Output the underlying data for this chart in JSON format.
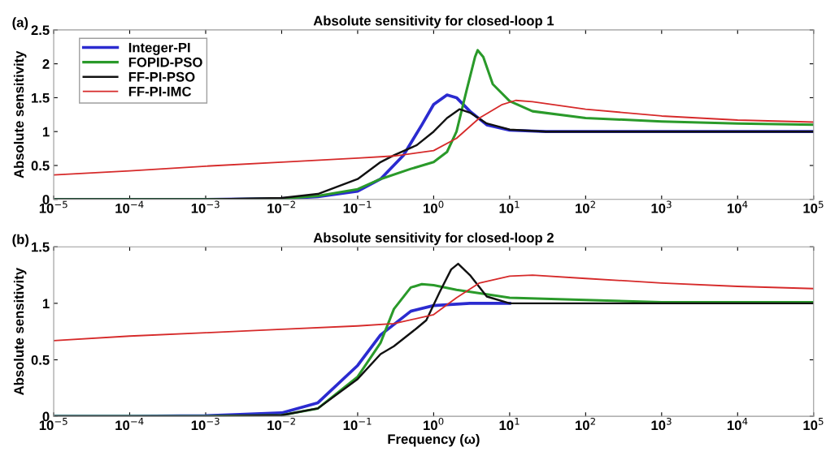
{
  "chart_data": [
    {
      "type": "line",
      "title": "Absolute sensitivity for closed-loop 1",
      "ylabel": "Absolute sensitivity",
      "annotations": [
        "(a)"
      ],
      "log": "x",
      "legend": "top left",
      "grid": false,
      "xlim": [
        1e-05,
        100000
      ],
      "ylim": [
        0,
        2.5
      ],
      "xticks": [
        {
          "value": 1e-05,
          "label": "10$^{−5}$"
        },
        {
          "value": 0.0001,
          "label": "10$^{−4}$"
        },
        {
          "value": 0.001,
          "label": "10$^{−3}$"
        },
        {
          "value": 0.01,
          "label": "10$^{−2}$"
        },
        {
          "value": 0.1,
          "label": "10$^{−1}$"
        },
        {
          "value": 1,
          "label": "10$^{0}$"
        },
        {
          "value": 10,
          "label": "10$^{1}$"
        },
        {
          "value": 100,
          "label": "10$^{2}$"
        },
        {
          "value": 1000,
          "label": "10$^{3}$"
        },
        {
          "value": 10000,
          "label": "10$^{4}$"
        },
        {
          "value": 100000,
          "label": "10$^{5}$"
        }
      ],
      "yticks": [
        0,
        0.5,
        1,
        1.5,
        2,
        2.5
      ],
      "series": [
        {
          "name": "Integer-PI",
          "color": "#2b2bd0",
          "x": [
            1e-05,
            0.001,
            0.01,
            0.03,
            0.1,
            0.2,
            0.4,
            0.7,
            1.0,
            1.5,
            2,
            3,
            5,
            10,
            30,
            100000
          ],
          "values": [
            0,
            0,
            0.01,
            0.04,
            0.12,
            0.3,
            0.65,
            1.1,
            1.4,
            1.54,
            1.5,
            1.3,
            1.1,
            1.02,
            1.0,
            1.0
          ]
        },
        {
          "name": "FOPID-PSO",
          "color": "#2a9a2a",
          "x": [
            1e-05,
            0.001,
            0.01,
            0.03,
            0.1,
            0.2,
            0.5,
            1,
            1.5,
            2,
            2.7,
            3.5,
            3.8,
            4.5,
            6,
            10,
            20,
            100,
            1000,
            10000,
            100000
          ],
          "values": [
            0,
            0,
            0.01,
            0.05,
            0.15,
            0.3,
            0.45,
            0.55,
            0.7,
            1.0,
            1.6,
            2.1,
            2.2,
            2.1,
            1.7,
            1.45,
            1.3,
            1.2,
            1.15,
            1.12,
            1.1
          ]
        },
        {
          "name": "FF-PI-PSO",
          "color": "#111111",
          "x": [
            1e-05,
            0.001,
            0.003,
            0.01,
            0.03,
            0.1,
            0.2,
            0.3,
            0.6,
            1,
            1.5,
            2.2,
            3,
            5,
            10,
            30,
            100000
          ],
          "values": [
            0,
            0,
            0.01,
            0.02,
            0.08,
            0.3,
            0.55,
            0.65,
            0.8,
            1.0,
            1.2,
            1.33,
            1.28,
            1.12,
            1.03,
            1.0,
            1.0
          ]
        },
        {
          "name": "FF-PI-IMC",
          "color": "#d62a2a",
          "x": [
            1e-05,
            0.0001,
            0.001,
            0.01,
            0.1,
            0.3,
            1,
            2,
            4,
            8,
            12,
            20,
            100,
            1000,
            10000,
            100000
          ],
          "values": [
            0.36,
            0.42,
            0.49,
            0.55,
            0.61,
            0.64,
            0.72,
            0.9,
            1.2,
            1.4,
            1.46,
            1.44,
            1.33,
            1.23,
            1.17,
            1.14
          ]
        }
      ]
    },
    {
      "type": "line",
      "title": "Absolute sensitivity for closed-loop 2",
      "xlabel": "Frequency (ω)",
      "ylabel": "Absolute sensitivity",
      "annotations": [
        "(b)"
      ],
      "log": "x",
      "grid": false,
      "xlim": [
        1e-05,
        100000
      ],
      "ylim": [
        0,
        1.5
      ],
      "xticks": [
        {
          "value": 1e-05,
          "label": "10$^{−5}$"
        },
        {
          "value": 0.0001,
          "label": "10$^{−4}$"
        },
        {
          "value": 0.001,
          "label": "10$^{−3}$"
        },
        {
          "value": 0.01,
          "label": "10$^{−2}$"
        },
        {
          "value": 0.1,
          "label": "10$^{−1}$"
        },
        {
          "value": 1,
          "label": "10$^{0}$"
        },
        {
          "value": 10,
          "label": "10$^{1}$"
        },
        {
          "value": 100,
          "label": "10$^{2}$"
        },
        {
          "value": 1000,
          "label": "10$^{3}$"
        },
        {
          "value": 10000,
          "label": "10$^{4}$"
        },
        {
          "value": 100000,
          "label": "10$^{5}$"
        }
      ],
      "yticks": [
        0,
        0.5,
        1,
        1.5
      ],
      "series": [
        {
          "color": "#2b2bd0",
          "x": [
            1e-05,
            0.0001,
            0.001,
            0.01,
            0.03,
            0.1,
            0.2,
            0.5,
            1,
            3,
            10
          ],
          "values": [
            0,
            0,
            0.005,
            0.03,
            0.12,
            0.45,
            0.72,
            0.93,
            0.98,
            1.0,
            1.0
          ]
        },
        {
          "color": "#2a9a2a",
          "x": [
            1e-05,
            0.001,
            0.01,
            0.03,
            0.1,
            0.2,
            0.3,
            0.5,
            0.7,
            1,
            2,
            5,
            10,
            100,
            1000,
            100000
          ],
          "values": [
            0,
            0,
            0.01,
            0.07,
            0.35,
            0.65,
            0.95,
            1.14,
            1.17,
            1.16,
            1.12,
            1.08,
            1.05,
            1.03,
            1.01,
            1.01
          ]
        },
        {
          "color": "#111111",
          "x": [
            1e-05,
            0.001,
            0.01,
            0.03,
            0.1,
            0.2,
            0.3,
            0.6,
            0.8,
            1.2,
            1.7,
            2.1,
            3,
            5,
            10,
            100000
          ],
          "values": [
            0,
            0,
            0.01,
            0.07,
            0.33,
            0.55,
            0.62,
            0.78,
            0.85,
            1.1,
            1.3,
            1.35,
            1.25,
            1.06,
            1.0,
            1.0
          ]
        },
        {
          "color": "#d62a2a",
          "x": [
            1e-05,
            0.0001,
            0.001,
            0.01,
            0.1,
            0.3,
            1,
            2,
            4,
            10,
            20,
            100,
            1000,
            10000,
            100000
          ],
          "values": [
            0.67,
            0.71,
            0.74,
            0.77,
            0.8,
            0.82,
            0.9,
            1.05,
            1.18,
            1.24,
            1.25,
            1.22,
            1.18,
            1.15,
            1.13
          ]
        }
      ]
    }
  ]
}
